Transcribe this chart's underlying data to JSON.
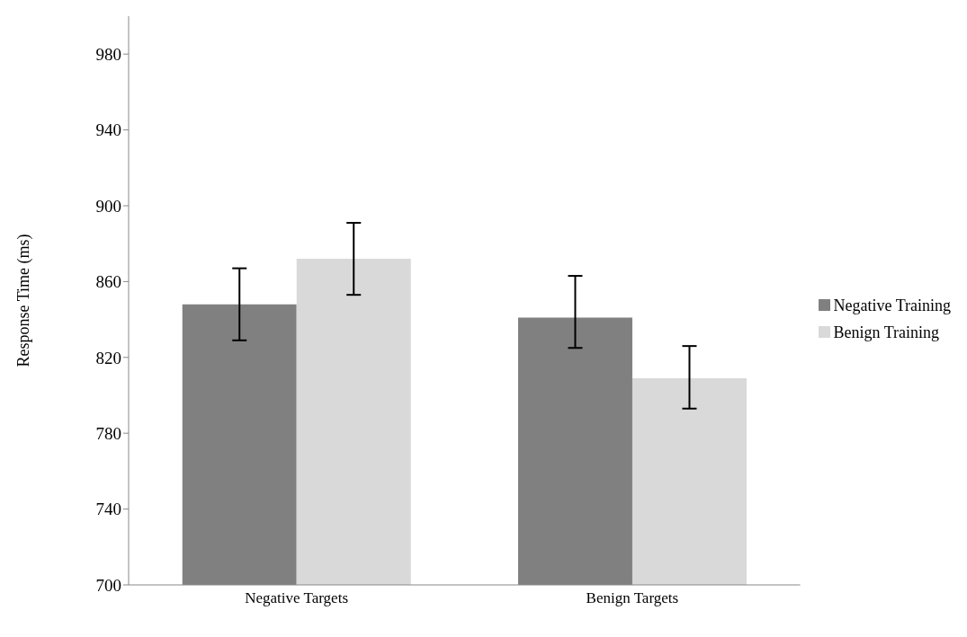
{
  "chart_data": {
    "type": "bar",
    "ylabel": "Response Time (ms)",
    "categories": [
      "Negative Targets",
      "Benign Targets"
    ],
    "series": [
      {
        "name": "Negative Training",
        "color": "#808080",
        "values": [
          848,
          841
        ],
        "errors": [
          [
            829,
            867
          ],
          [
            825,
            863
          ]
        ]
      },
      {
        "name": "Benign Training",
        "color": "#d9d9d9",
        "values": [
          872,
          809
        ],
        "errors": [
          [
            853,
            891
          ],
          [
            793,
            826
          ]
        ]
      }
    ],
    "ylim": [
      700,
      1000
    ],
    "yticks": [
      700,
      740,
      780,
      820,
      860,
      900,
      940,
      980
    ],
    "grid": false,
    "legend": "right"
  }
}
